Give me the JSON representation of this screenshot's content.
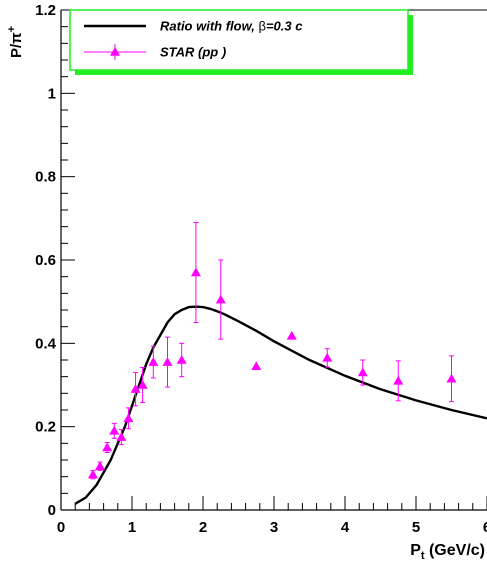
{
  "chart_data": {
    "type": "scatter",
    "xlabel_main": "P",
    "xlabel_sub": "t",
    "xlabel_unit": " (GeV/c)",
    "ylabel_main": "P/π",
    "ylabel_sup": "+",
    "xlim": [
      0,
      6
    ],
    "ylim": [
      0,
      1.2
    ],
    "x_ticks": [
      {
        "value": 0,
        "label": "0"
      },
      {
        "value": 1,
        "label": "1"
      },
      {
        "value": 2,
        "label": "2"
      },
      {
        "value": 3,
        "label": "3"
      },
      {
        "value": 4,
        "label": "4"
      },
      {
        "value": 5,
        "label": "5"
      },
      {
        "value": 6,
        "label": "6"
      }
    ],
    "y_ticks": [
      {
        "value": 0,
        "label": "0"
      },
      {
        "value": 0.2,
        "label": "0.2"
      },
      {
        "value": 0.4,
        "label": "0.4"
      },
      {
        "value": 0.6,
        "label": "0.6"
      },
      {
        "value": 0.8,
        "label": "0.8"
      },
      {
        "value": 1.0,
        "label": "1"
      },
      {
        "value": 1.2,
        "label": "1.2"
      }
    ],
    "grid": false,
    "legend_position": "top-left",
    "legend": [
      {
        "label_pre": "Ratio with flow, ",
        "label_symbol": "β",
        "label_post": "=0.3 c",
        "style": "line",
        "color": "#000000"
      },
      {
        "label_pre": "STAR (pp )",
        "label_symbol": "",
        "label_post": "",
        "style": "triangle-errorbar",
        "color": "#ff00ff"
      }
    ],
    "series": [
      {
        "name": "Ratio with flow, β=0.3 c",
        "kind": "line",
        "color": "#000000",
        "x": [
          0.2,
          0.35,
          0.5,
          0.6,
          0.7,
          0.8,
          0.9,
          1.0,
          1.1,
          1.2,
          1.3,
          1.4,
          1.5,
          1.6,
          1.7,
          1.8,
          1.9,
          2.0,
          2.1,
          2.2,
          2.3,
          2.5,
          2.75,
          3.0,
          3.5,
          4.0,
          4.5,
          5.0,
          5.5,
          6.0
        ],
        "y": [
          0.015,
          0.03,
          0.06,
          0.09,
          0.12,
          0.16,
          0.2,
          0.25,
          0.3,
          0.35,
          0.39,
          0.42,
          0.45,
          0.47,
          0.48,
          0.487,
          0.488,
          0.487,
          0.483,
          0.477,
          0.47,
          0.453,
          0.43,
          0.405,
          0.36,
          0.322,
          0.29,
          0.263,
          0.24,
          0.22
        ]
      },
      {
        "name": "STAR (pp )",
        "kind": "scatter",
        "color": "#ff00ff",
        "points": [
          {
            "x": 0.45,
            "y": 0.085,
            "err": 0.01
          },
          {
            "x": 0.55,
            "y": 0.105,
            "err": 0.01
          },
          {
            "x": 0.65,
            "y": 0.15,
            "err": 0.012
          },
          {
            "x": 0.75,
            "y": 0.19,
            "err": 0.018
          },
          {
            "x": 0.85,
            "y": 0.175,
            "err": 0.018
          },
          {
            "x": 0.95,
            "y": 0.22,
            "err": 0.025
          },
          {
            "x": 1.05,
            "y": 0.29,
            "err": 0.04
          },
          {
            "x": 1.15,
            "y": 0.3,
            "err": 0.042
          },
          {
            "x": 1.3,
            "y": 0.355,
            "err": 0.038
          },
          {
            "x": 1.5,
            "y": 0.355,
            "err": 0.06
          },
          {
            "x": 1.7,
            "y": 0.36,
            "err": 0.04
          },
          {
            "x": 1.9,
            "y": 0.57,
            "err": 0.12
          },
          {
            "x": 2.25,
            "y": 0.505,
            "err": 0.095
          },
          {
            "x": 2.75,
            "y": 0.345,
            "err": 0.0
          },
          {
            "x": 3.25,
            "y": 0.418,
            "err": 0.0
          },
          {
            "x": 3.75,
            "y": 0.365,
            "err": 0.022
          },
          {
            "x": 4.25,
            "y": 0.33,
            "err": 0.03
          },
          {
            "x": 4.75,
            "y": 0.31,
            "err": 0.048
          },
          {
            "x": 5.5,
            "y": 0.315,
            "err": 0.055
          }
        ]
      }
    ]
  }
}
